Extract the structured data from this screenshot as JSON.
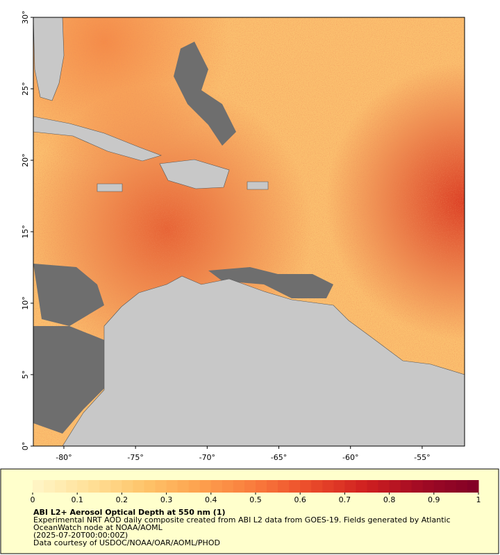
{
  "map": {
    "xlim": [
      -82.13,
      -52.04
    ],
    "ylim": [
      0,
      30
    ],
    "xticks": [
      {
        "value": -80,
        "label": "-80°"
      },
      {
        "value": -75,
        "label": "-75°"
      },
      {
        "value": -70,
        "label": "-70°"
      },
      {
        "value": -65,
        "label": "-65°"
      },
      {
        "value": -60,
        "label": "-60°"
      },
      {
        "value": -55,
        "label": "-55°"
      }
    ],
    "yticks": [
      {
        "value": 0,
        "label": "0°"
      },
      {
        "value": 5,
        "label": "5°"
      },
      {
        "value": 10,
        "label": "10°"
      },
      {
        "value": 15,
        "label": "15°"
      },
      {
        "value": 20,
        "label": "20°"
      },
      {
        "value": 25,
        "label": "25°"
      },
      {
        "value": 30,
        "label": "30°"
      }
    ],
    "colorbar": {
      "lim": [
        0,
        1
      ],
      "ticks": [
        0,
        0.1,
        0.2,
        0.3,
        0.4,
        0.5,
        0.6,
        0.7,
        0.8,
        0.9,
        1
      ],
      "colors": [
        "#fff6c8",
        "#ffe199",
        "#fec46a",
        "#fda14e",
        "#f97a3c",
        "#ea4a2a",
        "#cf1f20",
        "#a00a24",
        "#800026"
      ]
    },
    "title": "ABI L2+ Aerosol Optical Depth at 550 nm (1)",
    "notes": [
      "Experimental NRT AOD daily composite created from ABI L2 data from GOES-19. Fields generated by Atlantic",
      "OceanWatch node at NOAA/AOML",
      "(2025-07-20T00:00:00Z)",
      "Data courtesy of USDOC/NOAA/OAR/AOML/PHOD"
    ]
  }
}
